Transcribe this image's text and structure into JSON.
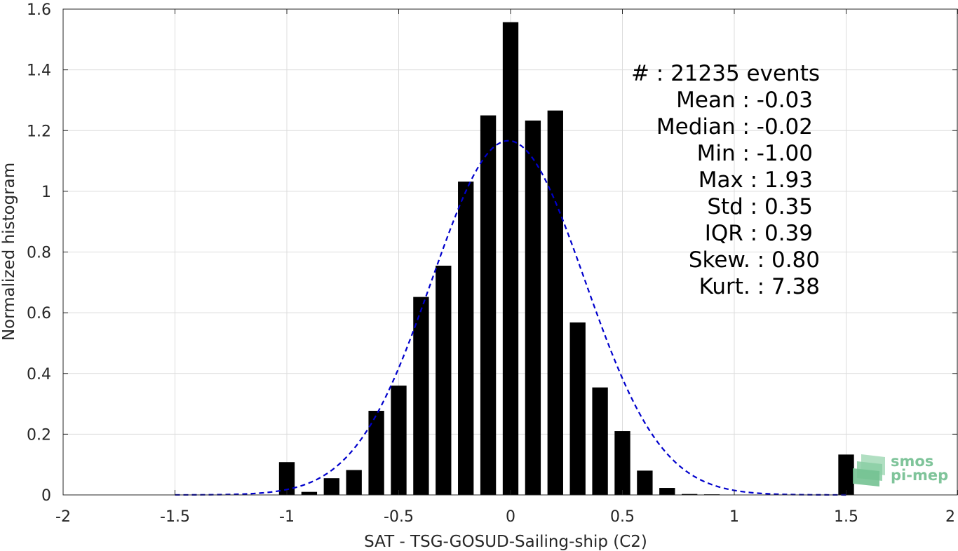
{
  "chart_data": {
    "type": "bar",
    "xlabel": "SAT - TSG-GOSUD-Sailing-ship (C2)",
    "ylabel": "Normalized histogram",
    "xlim": [
      -2,
      2
    ],
    "ylim": [
      0,
      1.6
    ],
    "x_ticks": [
      -2,
      -1.5,
      -1,
      -0.5,
      0,
      0.5,
      1,
      1.5,
      2
    ],
    "x_tick_labels": [
      "-2",
      "-1.5",
      "-1",
      "-0.5",
      "0",
      "0.5",
      "1",
      "1.5",
      "2"
    ],
    "y_ticks": [
      0,
      0.2,
      0.4,
      0.6,
      0.8,
      1,
      1.2,
      1.4,
      1.6
    ],
    "y_tick_labels": [
      "0",
      "0.2",
      "0.4",
      "0.6",
      "0.8",
      "1",
      "1.2",
      "1.4",
      "1.6"
    ],
    "grid": true,
    "bar_width": 0.07,
    "bars": {
      "x": [
        -1.0,
        -0.9,
        -0.8,
        -0.7,
        -0.6,
        -0.5,
        -0.4,
        -0.3,
        -0.2,
        -0.1,
        0.0,
        0.1,
        0.2,
        0.3,
        0.4,
        0.5,
        0.6,
        0.7,
        0.8,
        0.9,
        1.0,
        1.5
      ],
      "values": [
        0.108,
        0.01,
        0.055,
        0.082,
        0.277,
        0.36,
        0.652,
        0.755,
        1.032,
        1.25,
        1.557,
        1.233,
        1.266,
        0.568,
        0.354,
        0.21,
        0.08,
        0.023,
        0.003,
        0.002,
        0.001,
        0.133
      ],
      "color": "#000000"
    },
    "fit_curve": {
      "type": "gaussian",
      "mean": -0.01,
      "std": 0.342,
      "x_range": [
        -1.5,
        1.5
      ],
      "style": "dashed",
      "color": "#0000cc"
    },
    "stats": [
      {
        "label": "#  : 21235 events"
      },
      {
        "label": "Mean : -0.03"
      },
      {
        "label": "Median : -0.02"
      },
      {
        "label": "Min : -1.00"
      },
      {
        "label": "Max : 1.93"
      },
      {
        "label": "Std : 0.35"
      },
      {
        "label": "IQR : 0.39"
      },
      {
        "label": "Skew. : 0.80"
      },
      {
        "label": "Kurt. : 7.38"
      }
    ]
  },
  "logo": {
    "line1": "smos",
    "line2": "pi-mep",
    "color": "#7fc49a"
  }
}
